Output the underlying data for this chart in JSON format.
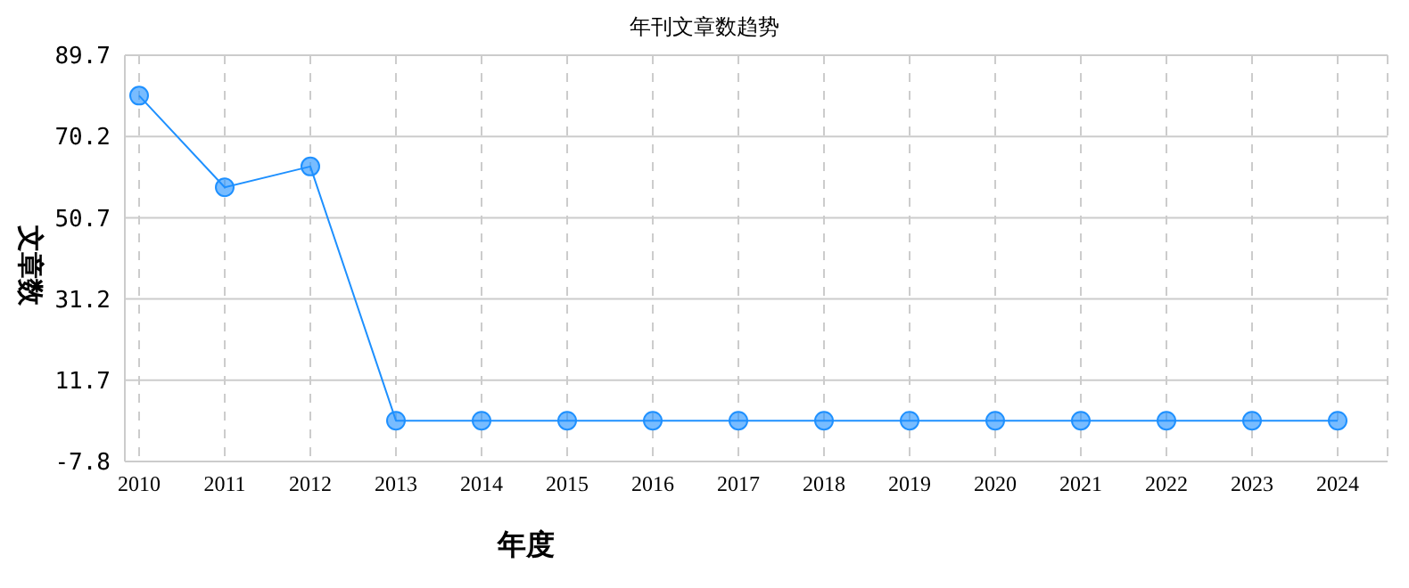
{
  "chart_data": {
    "type": "line",
    "title": "年刊文章数趋势",
    "xlabel": "年度",
    "ylabel": "文章数",
    "categories": [
      "2010",
      "2011",
      "2012",
      "2013",
      "2014",
      "2015",
      "2016",
      "2017",
      "2018",
      "2019",
      "2020",
      "2021",
      "2022",
      "2023",
      "2024"
    ],
    "series": [
      {
        "color": "#1e90ff",
        "values": [
          80,
          58,
          63,
          2,
          2,
          2,
          2,
          2,
          2,
          2,
          2,
          2,
          2,
          2,
          2
        ]
      }
    ],
    "ylim": [
      -7.8,
      89.7
    ],
    "yticks": [
      -7.8,
      11.7,
      31.2,
      50.7,
      70.2,
      89.7
    ],
    "grid": true,
    "marker": "circle",
    "line_style": "solid",
    "legend": false
  }
}
